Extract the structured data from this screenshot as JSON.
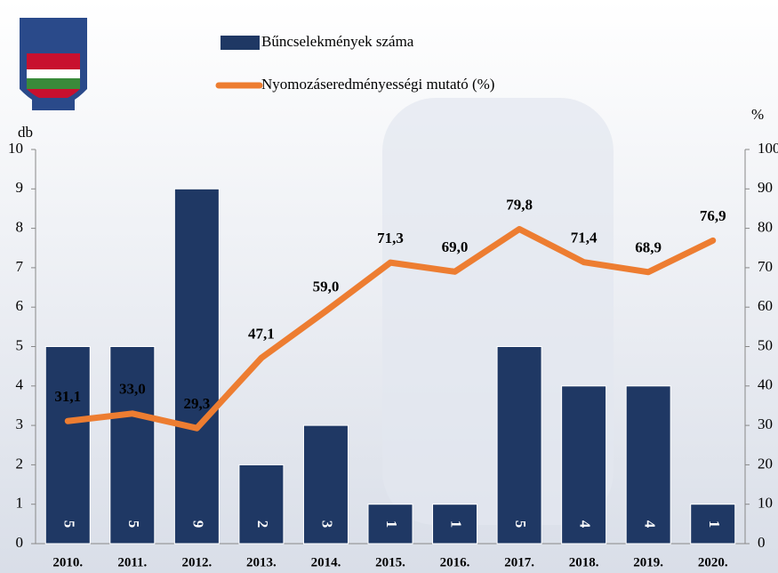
{
  "chart_data": {
    "type": "bar",
    "y_label": "db",
    "y2_label": "%",
    "categories": [
      "2010.",
      "2011.",
      "2012.",
      "2013.",
      "2014.",
      "2015.",
      "2016.",
      "2017.",
      "2018.",
      "2019.",
      "2020."
    ],
    "series": [
      {
        "name": "Bűncselekmények száma",
        "type": "bar",
        "color": "#1f3864",
        "values": [
          5,
          5,
          9,
          2,
          3,
          1,
          1,
          5,
          4,
          4,
          1
        ]
      },
      {
        "name": "Nyomozáseredményességi mutató (%)",
        "type": "line",
        "color": "#ed7d31",
        "axis": "y2",
        "values": [
          31.1,
          33.0,
          29.3,
          47.1,
          59.0,
          71.3,
          69.0,
          79.8,
          71.4,
          68.9,
          76.9
        ],
        "value_labels": [
          "31,1",
          "33,0",
          "29,3",
          "47,1",
          "59,0",
          "71,3",
          "69,0",
          "79,8",
          "71,4",
          "68,9",
          "76,9"
        ]
      }
    ],
    "ylim": [
      0,
      10
    ],
    "yticks": [
      0,
      1,
      2,
      3,
      4,
      5,
      6,
      7,
      8,
      9,
      10
    ],
    "y2lim": [
      0,
      100
    ],
    "y2ticks": [
      0,
      10,
      20,
      30,
      40,
      50,
      60,
      70,
      80,
      90,
      100
    ]
  }
}
